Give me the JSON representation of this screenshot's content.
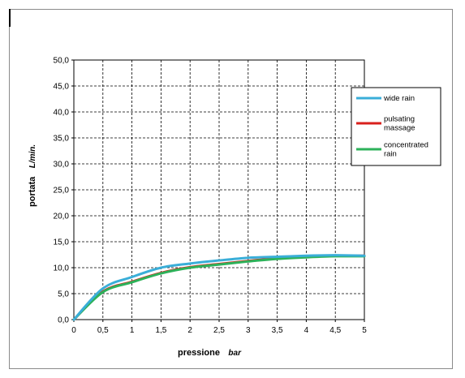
{
  "chart_data": {
    "type": "line",
    "title": "",
    "xlabel": "pressione",
    "xlabel_unit": "bar",
    "ylabel": "portata",
    "ylabel_unit": "L/min.",
    "xlim": [
      0,
      5
    ],
    "ylim": [
      0,
      50
    ],
    "x_ticks": [
      "0",
      "0,5",
      "1",
      "1,5",
      "2",
      "2,5",
      "3",
      "3,5",
      "4",
      "4,5",
      "5"
    ],
    "y_ticks": [
      "0,0",
      "5,0",
      "10,0",
      "15,0",
      "20,0",
      "25,0",
      "30,0",
      "35,0",
      "40,0",
      "45,0",
      "50,0"
    ],
    "grid": true,
    "legend_position": "right",
    "x": [
      0,
      0.5,
      1,
      1.5,
      2,
      2.5,
      3,
      3.5,
      4,
      4.5,
      5
    ],
    "series": [
      {
        "name": "wide rain",
        "color": "#3aaed8",
        "values": [
          0,
          6.0,
          8.2,
          10.0,
          10.8,
          11.4,
          11.9,
          12.1,
          12.3,
          12.4,
          12.3
        ]
      },
      {
        "name": "pulsating massage",
        "color": "#d9201c",
        "values": [
          0,
          5.4,
          7.3,
          9.0,
          10.1,
          10.7,
          11.3,
          11.8,
          12.1,
          12.3,
          12.3
        ]
      },
      {
        "name": "concentrated rain",
        "color": "#2db25a",
        "values": [
          0,
          5.3,
          7.2,
          8.9,
          10.0,
          10.6,
          11.2,
          11.7,
          12.0,
          12.2,
          12.2
        ]
      }
    ]
  }
}
